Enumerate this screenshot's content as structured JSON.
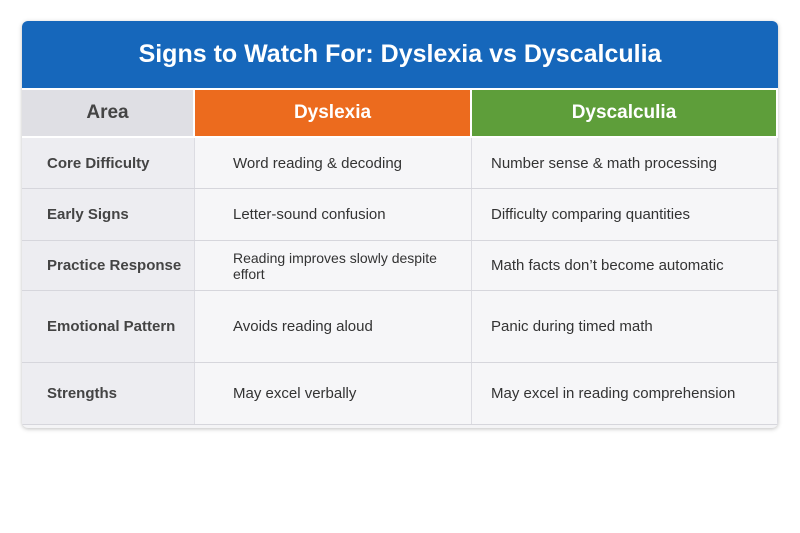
{
  "title": "Signs to Watch For: Dyslexia vs Dyscalculia",
  "colors": {
    "title_bg": "#1667bb",
    "dyslexia": "#ec6b1e",
    "dyscalculia": "#5e9e3a"
  },
  "headers": [
    "Area",
    "Dyslexia",
    "Dyscalculia"
  ],
  "rows": [
    {
      "area": "Core Difficulty",
      "dyslexia": "Word reading & decoding",
      "dyscalculia": "Number sense & math processing"
    },
    {
      "area": "Early Signs",
      "dyslexia": "Letter-sound confusion",
      "dyscalculia": "Difficulty comparing quantities"
    },
    {
      "area": "Practice Response",
      "dyslexia": "Reading improves slowly despite effort",
      "dyscalculia": "Math facts don’t become automatic"
    },
    {
      "area": "Emotional Pattern",
      "dyslexia": "Avoids reading aloud",
      "dyscalculia": "Panic during timed math"
    },
    {
      "area": "Strengths",
      "dyslexia": "May excel verbally",
      "dyscalculia": "May excel in reading comprehension"
    }
  ]
}
